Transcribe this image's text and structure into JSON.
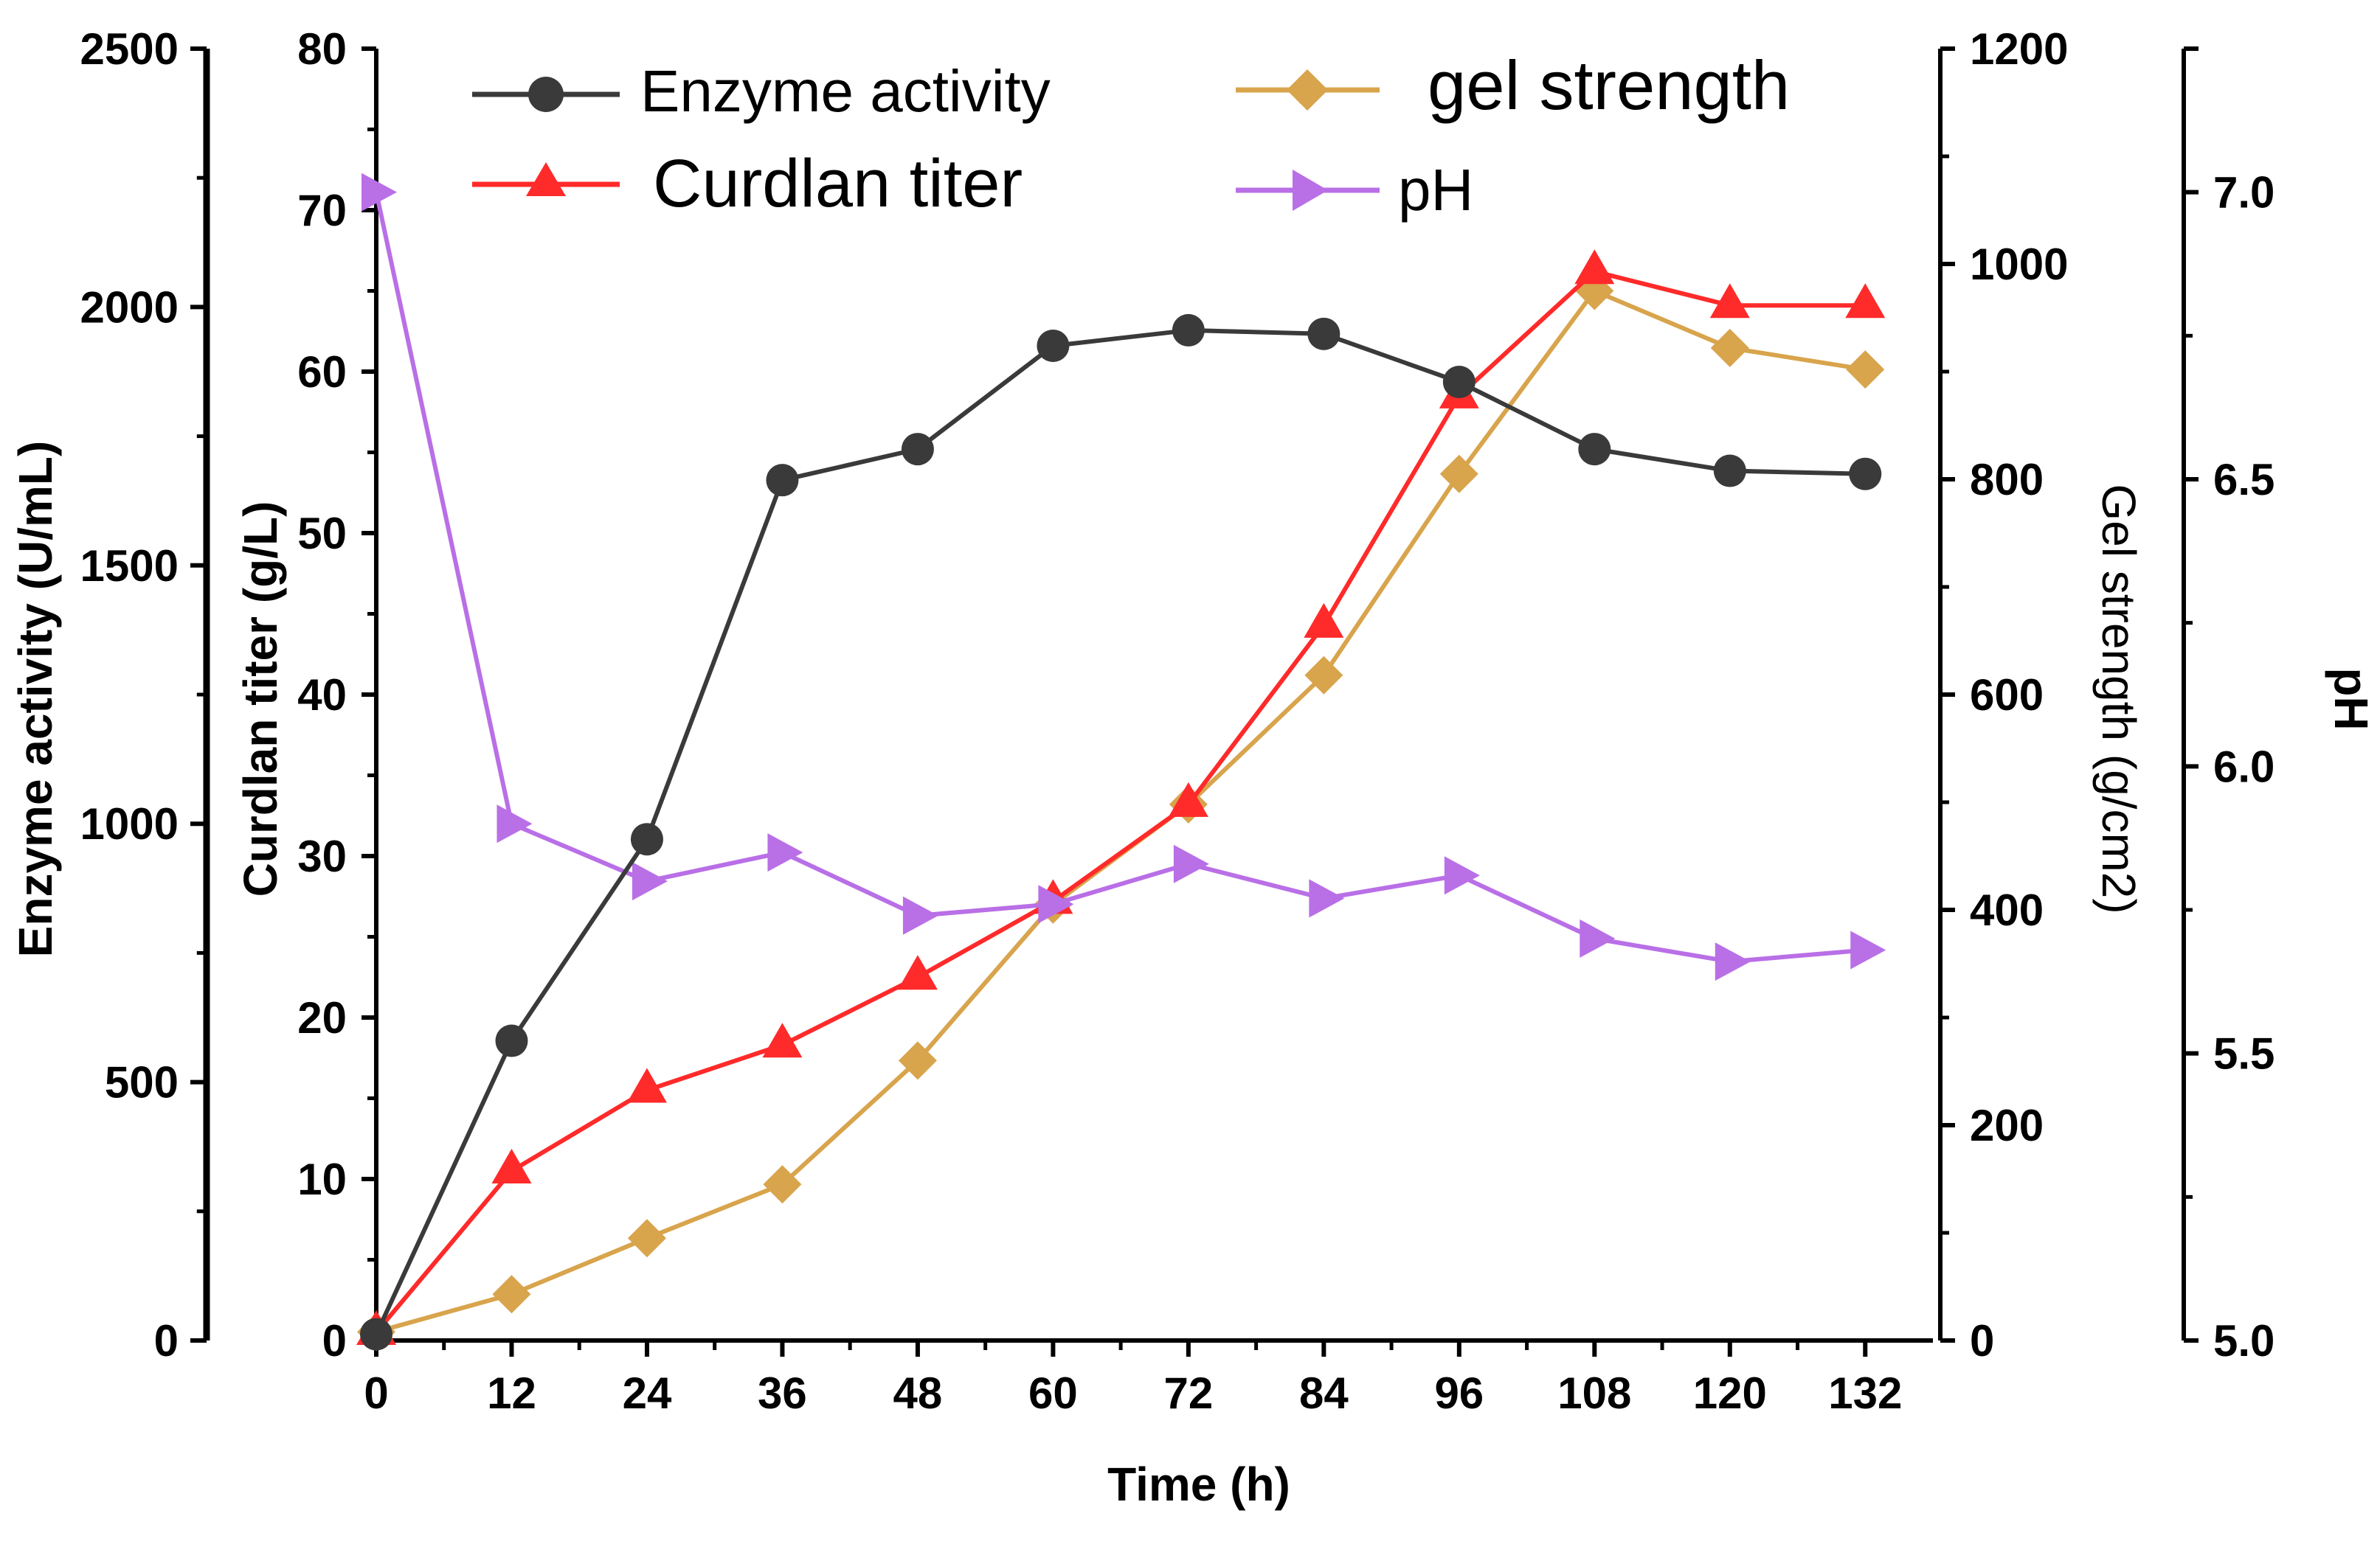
{
  "chart_data": {
    "type": "line",
    "title": "",
    "xlabel": "Time (h)",
    "x": [
      0,
      12,
      24,
      36,
      48,
      60,
      72,
      84,
      96,
      108,
      120,
      132
    ],
    "xlim": [
      0,
      138
    ],
    "xticks": [
      "0",
      "12",
      "24",
      "36",
      "48",
      "60",
      "72",
      "84",
      "96",
      "108",
      "120",
      "132"
    ],
    "legend_position": "top",
    "axes": {
      "enzyme": {
        "label": "Enzyme activity (U/mL)",
        "ylim": [
          0,
          2500
        ],
        "ticks": [
          "0",
          "500",
          "1000",
          "1500",
          "2000",
          "2500"
        ],
        "tick_values": [
          0,
          500,
          1000,
          1500,
          2000,
          2500
        ]
      },
      "titer": {
        "label": "Curdlan titer (g/L)",
        "ylim": [
          0,
          80
        ],
        "ticks": [
          "0",
          "10",
          "20",
          "30",
          "40",
          "50",
          "60",
          "70",
          "80"
        ],
        "tick_values": [
          0,
          10,
          20,
          30,
          40,
          50,
          60,
          70,
          80
        ]
      },
      "gel": {
        "label": "Gel strength (g/cm2)",
        "ylim": [
          0,
          1200
        ],
        "ticks": [
          "0",
          "200",
          "400",
          "600",
          "800",
          "1000",
          "1200"
        ],
        "tick_values": [
          0,
          200,
          400,
          600,
          800,
          1000,
          1200
        ]
      },
      "ph": {
        "label": "pH",
        "ylim": [
          5.0,
          7.25
        ],
        "ticks": [
          "5.0",
          "5.5",
          "6.0",
          "6.5",
          "7.0"
        ],
        "tick_values": [
          5.0,
          5.5,
          6.0,
          6.5,
          7.0
        ]
      }
    },
    "series": [
      {
        "name": "Enzyme activity",
        "axis": "enzyme",
        "marker": "circle",
        "color": "#3a3a3a",
        "values": [
          12,
          580,
          970,
          1665,
          1725,
          1925,
          1955,
          1948,
          1855,
          1725,
          1683,
          1677
        ]
      },
      {
        "name": "Curdlan titer",
        "axis": "titer",
        "marker": "triangle-up",
        "color": "#ff2a2a",
        "values": [
          0.5,
          10.5,
          15.5,
          18.3,
          22.5,
          27.2,
          33.2,
          44.3,
          58.5,
          66.2,
          64.1,
          64.1
        ]
      },
      {
        "name": "gel strength",
        "axis": "gel",
        "marker": "diamond",
        "color": "#d8a44c",
        "values": [
          8,
          43,
          95,
          145,
          260,
          405,
          498,
          618,
          805,
          975,
          922,
          902
        ]
      },
      {
        "name": "pH",
        "axis": "ph",
        "marker": "triangle-right",
        "color": "#b96fe6",
        "values": [
          7.0,
          5.9,
          5.8,
          5.85,
          5.74,
          5.76,
          5.83,
          5.77,
          5.81,
          5.7,
          5.66,
          5.68
        ]
      }
    ]
  }
}
